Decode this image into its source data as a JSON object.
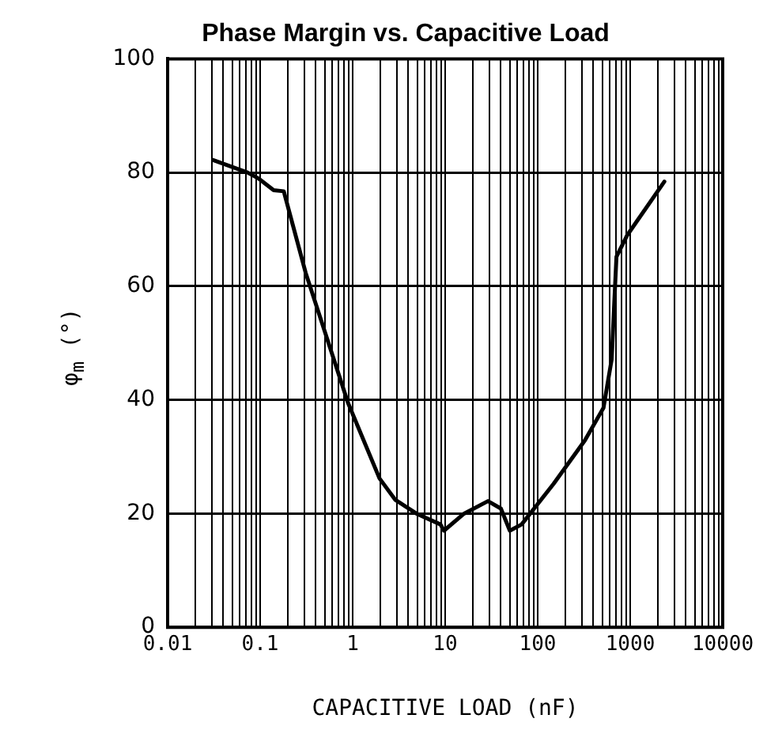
{
  "chart_data": {
    "type": "line",
    "title": "Phase Margin vs. Capacitive Load",
    "xlabel": "CAPACITIVE LOAD (nF)",
    "ylabel": "φ$_{m}$ (°)",
    "log": "x",
    "grid": true,
    "legend": false,
    "marker": "none",
    "line_style": "solid",
    "xlim": [
      0.01,
      10000
    ],
    "xticks": [
      0.01,
      {
        "value": 0.02,
        "label": null
      },
      {
        "value": 0.03,
        "label": null
      },
      {
        "value": 0.04,
        "label": null
      },
      {
        "value": 0.05,
        "label": null
      },
      {
        "value": 0.06,
        "label": null
      },
      {
        "value": 0.07,
        "label": null
      },
      {
        "value": 0.08,
        "label": null
      },
      {
        "value": 0.09,
        "label": null
      },
      0.1,
      {
        "value": 0.2,
        "label": null
      },
      {
        "value": 0.3,
        "label": null
      },
      {
        "value": 0.4,
        "label": null
      },
      {
        "value": 0.5,
        "label": null
      },
      {
        "value": 0.6,
        "label": null
      },
      {
        "value": 0.7,
        "label": null
      },
      {
        "value": 0.8,
        "label": null
      },
      {
        "value": 0.9,
        "label": null
      },
      1,
      {
        "value": 2,
        "label": null
      },
      {
        "value": 3,
        "label": null
      },
      {
        "value": 4,
        "label": null
      },
      {
        "value": 5,
        "label": null
      },
      {
        "value": 6,
        "label": null
      },
      {
        "value": 7,
        "label": null
      },
      {
        "value": 8,
        "label": null
      },
      {
        "value": 9,
        "label": null
      },
      10,
      {
        "value": 20,
        "label": null
      },
      {
        "value": 30,
        "label": null
      },
      {
        "value": 40,
        "label": null
      },
      {
        "value": 50,
        "label": null
      },
      {
        "value": 60,
        "label": null
      },
      {
        "value": 70,
        "label": null
      },
      {
        "value": 80,
        "label": null
      },
      {
        "value": 90,
        "label": null
      },
      100,
      {
        "value": 200,
        "label": null
      },
      {
        "value": 300,
        "label": null
      },
      {
        "value": 400,
        "label": null
      },
      {
        "value": 500,
        "label": null
      },
      {
        "value": 600,
        "label": null
      },
      {
        "value": 700,
        "label": null
      },
      {
        "value": 800,
        "label": null
      },
      {
        "value": 900,
        "label": null
      },
      1000,
      {
        "value": 2000,
        "label": null
      },
      {
        "value": 3000,
        "label": null
      },
      {
        "value": 4000,
        "label": null
      },
      {
        "value": 5000,
        "label": null
      },
      {
        "value": 6000,
        "label": null
      },
      {
        "value": 7000,
        "label": null
      },
      {
        "value": 8000,
        "label": null
      },
      {
        "value": 9000,
        "label": null
      },
      10000
    ],
    "ylim": [
      0,
      100
    ],
    "yticks": [
      0,
      20,
      40,
      60,
      80,
      100
    ],
    "series": [
      {
        "color": "#000000",
        "x": [
          0.031,
          0.073,
          0.095,
          0.14,
          0.18,
          0.31,
          0.89,
          1.95,
          2.9,
          4.9,
          8.9,
          9.7,
          16,
          29,
          40,
          50,
          67,
          148,
          324,
          514,
          630,
          710,
          930,
          2340
        ],
        "values": [
          82.2,
          80,
          79,
          76.9,
          76.7,
          62.4,
          39.5,
          26.2,
          22.4,
          20,
          18.1,
          17,
          20,
          22.2,
          20.9,
          17,
          18.1,
          25.2,
          32.9,
          38.6,
          47.1,
          65.2,
          69,
          78.4
        ]
      }
    ]
  }
}
